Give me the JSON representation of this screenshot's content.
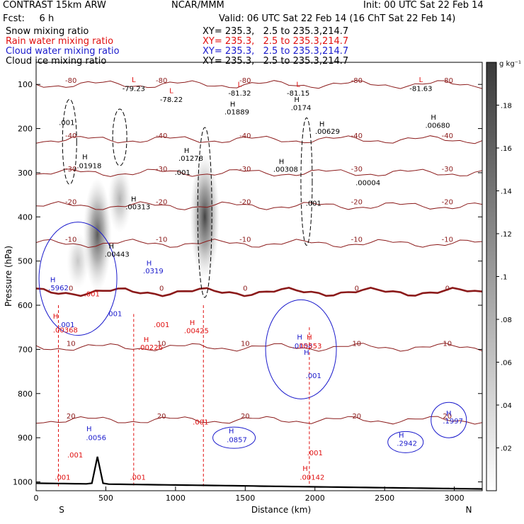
{
  "header": {
    "model": "CONTRAST 15km ARW",
    "org": "NCAR/MMM",
    "init": "Init: 00 UTC Sat 22 Feb 14",
    "fcst": "Fcst:     6 h",
    "valid": "Valid: 06 UTC Sat 22 Feb 14 (16 ChT Sat 22 Feb 14)",
    "fields": [
      {
        "label": "Snow mixing ratio",
        "xy": "XY= 235.3,   2.5 to 235.3,214.7",
        "color": "#000000"
      },
      {
        "label": "Rain water mixing ratio",
        "xy": "XY= 235.3,   2.5 to 235.3,214.7",
        "color": "#e01010"
      },
      {
        "label": "Cloud water mixing ratio",
        "xy": "XY= 235.3,   2.5 to 235.3,214.7",
        "color": "#1a1acc"
      },
      {
        "label": "Cloud ice mixing ratio",
        "xy": "XY= 235.3,   2.5 to 235.3,214.7",
        "color": "#000000"
      }
    ]
  },
  "chart_data": {
    "type": "cross-section contour",
    "xlabel": "Distance (km)",
    "ylabel": "Pressure (hPa)",
    "xlim": [
      0,
      3200
    ],
    "ylim": [
      50,
      1020
    ],
    "x_ticks": [
      0,
      500,
      1000,
      1500,
      2000,
      2500,
      3000
    ],
    "y_ticks": [
      100,
      200,
      300,
      400,
      500,
      600,
      700,
      800,
      900,
      1000
    ],
    "endpoint_labels": [
      "S",
      "N"
    ],
    "colorbar": {
      "unit": "g kg⁻¹",
      "ticks": [
        ".02",
        ".04",
        ".06",
        ".08",
        ".1",
        ".12",
        ".14",
        ".16",
        ".18"
      ],
      "range": [
        0,
        0.2
      ]
    },
    "temperature_contours": [
      {
        "value": -80,
        "label": "-80",
        "p": 100
      },
      {
        "value": -40,
        "label": "-40",
        "p": 225
      },
      {
        "value": -30,
        "label": "-30",
        "p": 300
      },
      {
        "value": -20,
        "label": "-20",
        "p": 375
      },
      {
        "value": -10,
        "label": "-10",
        "p": 460
      },
      {
        "value": 0,
        "label": "0",
        "p": 570
      },
      {
        "value": 10,
        "label": "10",
        "p": 695
      },
      {
        "value": 20,
        "label": "20",
        "p": 860
      }
    ],
    "snow_shading": [
      {
        "x": 440,
        "p": 440,
        "intensity": 0.75
      },
      {
        "x": 1210,
        "p": 400,
        "intensity": 0.85
      },
      {
        "x": 600,
        "p": 360,
        "intensity": 0.35
      },
      {
        "x": 300,
        "p": 500,
        "intensity": 0.25
      }
    ],
    "extrema_labels": [
      {
        "text": "L",
        "x": 700,
        "p": 95,
        "color": "red"
      },
      {
        "text": "-79.23",
        "x": 700,
        "p": 115,
        "color": "black"
      },
      {
        "text": "L",
        "x": 970,
        "p": 120,
        "color": "red"
      },
      {
        "text": "-78.22",
        "x": 970,
        "p": 140,
        "color": "black"
      },
      {
        "text": "L",
        "x": 1460,
        "p": 105,
        "color": "red"
      },
      {
        "text": "-81.32",
        "x": 1460,
        "p": 125,
        "color": "black"
      },
      {
        "text": "L",
        "x": 1880,
        "p": 105,
        "color": "red"
      },
      {
        "text": "-81.15",
        "x": 1880,
        "p": 125,
        "color": "black"
      },
      {
        "text": "L",
        "x": 2760,
        "p": 95,
        "color": "red"
      },
      {
        "text": "-81.63",
        "x": 2760,
        "p": 115,
        "color": "black"
      },
      {
        "text": "H",
        "x": 1410,
        "p": 150,
        "color": "black"
      },
      {
        "text": ".01889",
        "x": 1440,
        "p": 168,
        "color": "black"
      },
      {
        "text": "H",
        "x": 1870,
        "p": 140,
        "color": "black"
      },
      {
        "text": ".0174",
        "x": 1900,
        "p": 158,
        "color": "black"
      },
      {
        "text": "H",
        "x": 2050,
        "p": 195,
        "color": "black"
      },
      {
        "text": ".00629",
        "x": 2090,
        "p": 212,
        "color": "black"
      },
      {
        "text": "H",
        "x": 2850,
        "p": 180,
        "color": "black"
      },
      {
        "text": ".00680",
        "x": 2880,
        "p": 198,
        "color": "black"
      },
      {
        "text": "H",
        "x": 1080,
        "p": 255,
        "color": "black"
      },
      {
        "text": ".01278",
        "x": 1110,
        "p": 273,
        "color": "black"
      },
      {
        "text": "H",
        "x": 1760,
        "p": 280,
        "color": "black"
      },
      {
        "text": ".00308",
        "x": 1790,
        "p": 298,
        "color": "black"
      },
      {
        "text": "H",
        "x": 350,
        "p": 270,
        "color": "black"
      },
      {
        "text": ".01918",
        "x": 380,
        "p": 290,
        "color": "black"
      },
      {
        "text": ".001",
        "x": 220,
        "p": 192,
        "color": "black"
      },
      {
        "text": ".001",
        "x": 1050,
        "p": 305,
        "color": "black"
      },
      {
        "text": ".00004",
        "x": 2380,
        "p": 328,
        "color": "black"
      },
      {
        "text": "H",
        "x": 700,
        "p": 365,
        "color": "black"
      },
      {
        "text": ".00313",
        "x": 730,
        "p": 383,
        "color": "black"
      },
      {
        "text": ".001",
        "x": 1990,
        "p": 375,
        "color": "black"
      },
      {
        "text": "H",
        "x": 540,
        "p": 472,
        "color": "black"
      },
      {
        "text": ".00443",
        "x": 580,
        "p": 490,
        "color": "black"
      },
      {
        "text": "H",
        "x": 810,
        "p": 510,
        "color": "blue"
      },
      {
        "text": ".0319",
        "x": 840,
        "p": 528,
        "color": "blue"
      },
      {
        "text": "H",
        "x": 120,
        "p": 548,
        "color": "blue"
      },
      {
        "text": ".5962",
        "x": 160,
        "p": 566,
        "color": "blue"
      },
      {
        "text": ".001",
        "x": 400,
        "p": 580,
        "color": "red"
      },
      {
        "text": ".001",
        "x": 560,
        "p": 625,
        "color": "blue"
      },
      {
        "text": "H",
        "x": 140,
        "p": 630,
        "color": "red"
      },
      {
        "text": ".001",
        "x": 220,
        "p": 650,
        "color": "blue"
      },
      {
        "text": ".00368",
        "x": 210,
        "p": 662,
        "color": "red"
      },
      {
        "text": ".001",
        "x": 900,
        "p": 650,
        "color": "red"
      },
      {
        "text": "H",
        "x": 1120,
        "p": 645,
        "color": "red"
      },
      {
        "text": ".00425",
        "x": 1150,
        "p": 663,
        "color": "red"
      },
      {
        "text": "H",
        "x": 790,
        "p": 683,
        "color": "red"
      },
      {
        "text": ".00226",
        "x": 820,
        "p": 701,
        "color": "red"
      },
      {
        "text": "H",
        "x": 1890,
        "p": 678,
        "color": "blue"
      },
      {
        "text": ".0158",
        "x": 1910,
        "p": 698,
        "color": "blue"
      },
      {
        "text": "H",
        "x": 1960,
        "p": 678,
        "color": "red"
      },
      {
        "text": ".00553",
        "x": 1960,
        "p": 698,
        "color": "red"
      },
      {
        "text": "H",
        "x": 1940,
        "p": 712,
        "color": "blue"
      },
      {
        "text": ".001",
        "x": 1990,
        "p": 765,
        "color": "blue"
      },
      {
        "text": ".001",
        "x": 1180,
        "p": 870,
        "color": "red"
      },
      {
        "text": "H",
        "x": 380,
        "p": 885,
        "color": "blue"
      },
      {
        "text": ".0056",
        "x": 430,
        "p": 905,
        "color": "blue"
      },
      {
        "text": ".001",
        "x": 280,
        "p": 945,
        "color": "red"
      },
      {
        "text": "H",
        "x": 1400,
        "p": 890,
        "color": "blue"
      },
      {
        "text": ".0857",
        "x": 1440,
        "p": 910,
        "color": "blue"
      },
      {
        "text": "H",
        "x": 2620,
        "p": 900,
        "color": "blue"
      },
      {
        "text": ".2942",
        "x": 2660,
        "p": 918,
        "color": "blue"
      },
      {
        "text": "H",
        "x": 2960,
        "p": 850,
        "color": "blue"
      },
      {
        "text": ".1997",
        "x": 2990,
        "p": 868,
        "color": "blue"
      },
      {
        "text": ".001",
        "x": 2000,
        "p": 940,
        "color": "red"
      },
      {
        "text": "H",
        "x": 1930,
        "p": 975,
        "color": "red"
      },
      {
        "text": ".00142",
        "x": 1980,
        "p": 995,
        "color": "red"
      },
      {
        "text": ".001",
        "x": 190,
        "p": 995,
        "color": "red"
      },
      {
        "text": ".001",
        "x": 730,
        "p": 995,
        "color": "red"
      }
    ]
  }
}
